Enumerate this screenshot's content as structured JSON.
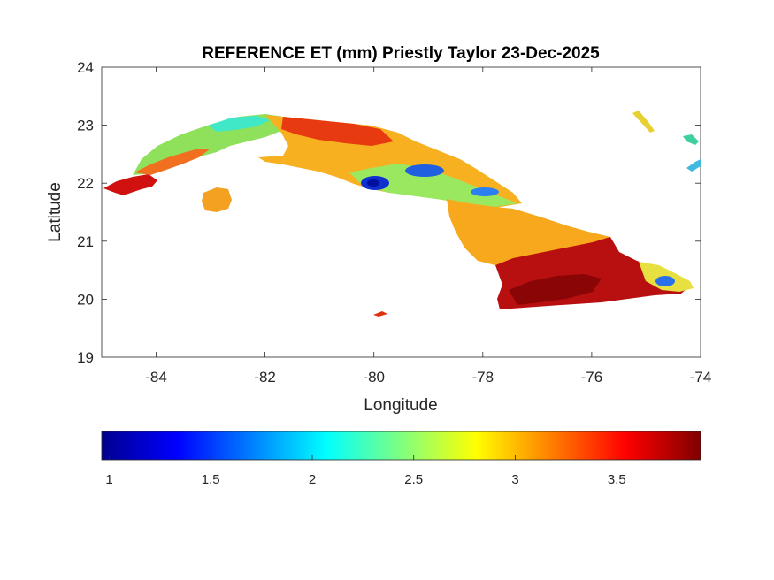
{
  "chart_data": {
    "type": "heatmap",
    "title": "REFERENCE ET (mm) Priestly Taylor 23-Dec-2025",
    "xlabel": "Longitude",
    "ylabel": "Latitude",
    "xlim": [
      -85,
      -74
    ],
    "ylim": [
      19,
      24
    ],
    "x_ticks": [
      "-84",
      "-82",
      "-80",
      "-78",
      "-76",
      "-74"
    ],
    "y_ticks": [
      "24",
      "23",
      "22",
      "21",
      "20",
      "19"
    ],
    "colorbar": {
      "orientation": "horizontal",
      "colormap": "jet",
      "range": [
        0.95,
        3.9
      ],
      "ticks": [
        "1",
        "1.5",
        "2",
        "2.5",
        "3",
        "3.5"
      ]
    },
    "grid": false
  }
}
